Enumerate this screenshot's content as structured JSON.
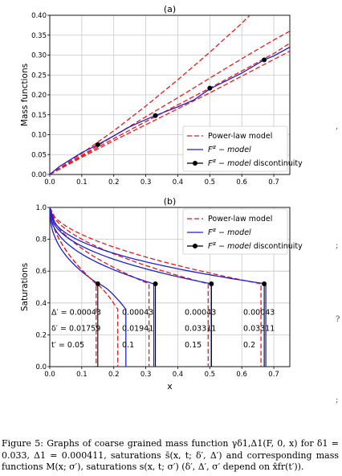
{
  "figure": {
    "panel_a_label": "(a)",
    "panel_b_label": "(b)",
    "xlabel": "x"
  },
  "caption": {
    "text": "Figure 5: Graphs of coarse grained mass function γδ1,Δ1(F, 0, x) for δ1 = 0.033, Δ1 = 0.000411, saturations s̄(x, t; δ′, Δ′) and corresponding mass functions M(x; σ′), saturations s(x, t; σ′) (δ′, Δ′, σ′ depend on x̄fr(t′))."
  },
  "edge_marks": {
    "a": ",",
    "b": ";",
    "c": "?",
    "d": ";"
  },
  "colors": {
    "red": "#e41a1c",
    "blue": "#1f1fd6",
    "grid": "#c8c8c8"
  },
  "chart_data": [
    {
      "type": "line",
      "panel": "(a)",
      "title": "(a)",
      "xlabel": "",
      "ylabel": "Mass functions",
      "xlim": [
        0,
        0.75
      ],
      "ylim": [
        0,
        0.4
      ],
      "xticks": [
        "0.0",
        "0.1",
        "0.2",
        "0.3",
        "0.4",
        "0.5",
        "0.6",
        "0.7"
      ],
      "yticks": [
        "0.00",
        "0.05",
        "0.10",
        "0.15",
        "0.20",
        "0.25",
        "0.30",
        "0.35",
        "0.40"
      ],
      "grid": true,
      "legend_position": "lower-right",
      "legend": [
        "Power-law model",
        "F^α − model",
        "F^α − model discontinuity"
      ],
      "series": [
        {
          "name": "Power-law model",
          "style": "dashed",
          "x": [
            0,
            0.1,
            0.2,
            0.3,
            0.4,
            0.5,
            0.6,
            0.65
          ],
          "y": [
            0,
            0.053,
            0.11,
            0.172,
            0.238,
            0.307,
            0.38,
            0.42
          ]
        },
        {
          "name": "",
          "style": "dashed",
          "x": [
            0,
            0.1,
            0.2,
            0.3,
            0.4,
            0.5,
            0.6,
            0.7,
            0.75
          ],
          "y": [
            0,
            0.048,
            0.097,
            0.145,
            0.193,
            0.242,
            0.291,
            0.338,
            0.36
          ]
        },
        {
          "name": "",
          "style": "dashed",
          "x": [
            0,
            0.1,
            0.2,
            0.3,
            0.4,
            0.5,
            0.6,
            0.7,
            0.75
          ],
          "y": [
            0,
            0.046,
            0.09,
            0.133,
            0.175,
            0.217,
            0.26,
            0.304,
            0.33
          ]
        },
        {
          "name": "",
          "style": "dashed",
          "x": [
            0,
            0.1,
            0.2,
            0.3,
            0.4,
            0.5,
            0.6,
            0.7,
            0.75
          ],
          "y": [
            0,
            0.043,
            0.085,
            0.125,
            0.165,
            0.205,
            0.247,
            0.289,
            0.31
          ]
        },
        {
          "name": "F^α − model",
          "style": "solid",
          "x": [
            0,
            0.03,
            0.07,
            0.1,
            0.15,
            0.2,
            0.25,
            0.3,
            0.33,
            0.4,
            0.45,
            0.5,
            0.55,
            0.6,
            0.67,
            0.7,
            0.75
          ],
          "y": [
            0,
            0.02,
            0.04,
            0.055,
            0.075,
            0.097,
            0.12,
            0.138,
            0.148,
            0.17,
            0.187,
            0.215,
            0.235,
            0.255,
            0.288,
            0.298,
            0.32
          ]
        }
      ],
      "markers": {
        "name": "F^α − model discontinuity",
        "x": [
          0.15,
          0.33,
          0.5,
          0.67
        ],
        "y": [
          0.075,
          0.148,
          0.217,
          0.288
        ]
      }
    },
    {
      "type": "line",
      "panel": "(b)",
      "title": "(b)",
      "xlabel": "x",
      "ylabel": "Saturations",
      "xlim": [
        0,
        0.75
      ],
      "ylim": [
        0,
        1.0
      ],
      "xticks": [
        "0.0",
        "0.1",
        "0.2",
        "0.3",
        "0.4",
        "0.5",
        "0.6",
        "0.7"
      ],
      "yticks": [
        "0.0",
        "0.2",
        "0.4",
        "0.6",
        "0.8",
        "1.0"
      ],
      "grid": true,
      "legend_position": "top-right",
      "legend": [
        "Power-law model",
        "F^α − model",
        "F^α − model discontinuity"
      ],
      "discontinuities": [
        {
          "x": 0.15,
          "s": 0.52,
          "red_front": 0.145,
          "blue_front": 0.152,
          "bump_peak_x": 0.23,
          "bump_peak_s": 0.36
        },
        {
          "x": 0.33,
          "s": 0.52,
          "red_front": 0.31,
          "blue_front": 0.325
        },
        {
          "x": 0.505,
          "s": 0.52,
          "red_front": 0.495,
          "blue_front": 0.505
        },
        {
          "x": 0.67,
          "s": 0.52,
          "red_front": 0.66,
          "blue_front": 0.675
        }
      ],
      "annotations": [
        {
          "col": 0,
          "lines": [
            "Δ′ = 0.00043",
            "δ′ = 0.01759",
            "t′ = 0.05"
          ]
        },
        {
          "col": 1,
          "lines": [
            "0.00043",
            "0.01941",
            "0.1"
          ]
        },
        {
          "col": 2,
          "lines": [
            "0.00043",
            "0.03311",
            "0.15"
          ]
        },
        {
          "col": 3,
          "lines": [
            "0.00043",
            "0.03311",
            "0.2"
          ]
        }
      ]
    }
  ]
}
